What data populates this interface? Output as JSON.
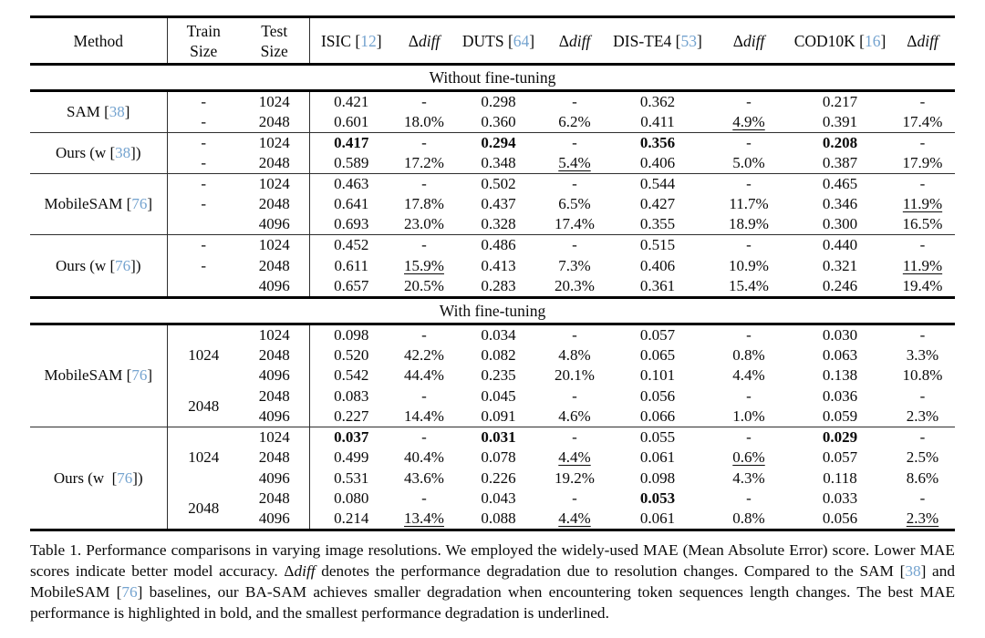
{
  "table": {
    "headers": {
      "method": "Method",
      "train": [
        "Train",
        "Size"
      ],
      "test": [
        "Test",
        "Size"
      ],
      "datasets": [
        {
          "name": "ISIC",
          "cite": "12"
        },
        {
          "name": "DUTS",
          "cite": "64"
        },
        {
          "name": "DIS-TE4",
          "cite": "53"
        },
        {
          "name": "COD10K",
          "cite": "16"
        }
      ],
      "diff": {
        "delta": "Δ",
        "word": "diff"
      }
    },
    "sections": [
      {
        "label": "Without fine-tuning",
        "groups": [
          {
            "method": {
              "pre": "SAM [",
              "cite": "38",
              "post": "]"
            },
            "rows": [
              {
                "train": "-",
                "test": "1024",
                "cells": [
                  "0.421",
                  "-",
                  "0.298",
                  "-",
                  "0.362",
                  "-",
                  "0.217",
                  "-"
                ]
              },
              {
                "train": "-",
                "test": "2048",
                "cells": [
                  "0.601",
                  "18.0%",
                  "0.360",
                  "6.2%",
                  "0.411",
                  {
                    "v": "4.9%",
                    "u": true
                  },
                  "0.391",
                  "17.4%"
                ]
              }
            ]
          },
          {
            "method": {
              "pre": "Ours (w [",
              "cite": "38",
              "post": "])"
            },
            "rows": [
              {
                "train": "-",
                "test": "1024",
                "cells": [
                  {
                    "v": "0.417",
                    "b": true
                  },
                  "-",
                  {
                    "v": "0.294",
                    "b": true
                  },
                  "-",
                  {
                    "v": "0.356",
                    "b": true
                  },
                  "-",
                  {
                    "v": "0.208",
                    "b": true
                  },
                  "-"
                ]
              },
              {
                "train": "-",
                "test": "2048",
                "cells": [
                  "0.589",
                  "17.2%",
                  "0.348",
                  {
                    "v": "5.4%",
                    "u": true
                  },
                  "0.406",
                  "5.0%",
                  "0.387",
                  "17.9%"
                ]
              }
            ]
          },
          {
            "method": {
              "pre": "MobileSAM [",
              "cite": "76",
              "post": "]"
            },
            "rows": [
              {
                "train": "-",
                "test": "1024",
                "cells": [
                  "0.463",
                  "-",
                  "0.502",
                  "-",
                  "0.544",
                  "-",
                  "0.465",
                  "-"
                ]
              },
              {
                "train": "-",
                "test": "2048",
                "cells": [
                  "0.641",
                  "17.8%",
                  "0.437",
                  "6.5%",
                  "0.427",
                  "11.7%",
                  "0.346",
                  {
                    "v": "11.9%",
                    "u": true
                  }
                ]
              },
              {
                "train": "",
                "test": "4096",
                "cells": [
                  "0.693",
                  "23.0%",
                  "0.328",
                  "17.4%",
                  "0.355",
                  "18.9%",
                  "0.300",
                  "16.5%"
                ]
              }
            ]
          },
          {
            "method": {
              "pre": "Ours (w [",
              "cite": "76",
              "post": "])"
            },
            "rows": [
              {
                "train": "-",
                "test": "1024",
                "cells": [
                  "0.452",
                  "-",
                  "0.486",
                  "-",
                  "0.515",
                  "-",
                  "0.440",
                  "-"
                ]
              },
              {
                "train": "-",
                "test": "2048",
                "cells": [
                  "0.611",
                  {
                    "v": "15.9%",
                    "u": true
                  },
                  "0.413",
                  "7.3%",
                  "0.406",
                  "10.9%",
                  "0.321",
                  {
                    "v": "11.9%",
                    "u": true
                  }
                ]
              },
              {
                "train": "",
                "test": "4096",
                "cells": [
                  "0.657",
                  "20.5%",
                  "0.283",
                  "20.3%",
                  "0.361",
                  "15.4%",
                  "0.246",
                  "19.4%"
                ]
              }
            ]
          }
        ]
      },
      {
        "label": "With fine-tuning",
        "groups": [
          {
            "method": {
              "pre": "MobileSAM [",
              "cite": "76",
              "post": "]"
            },
            "train_spans": [
              {
                "value": "1024",
                "span": 3
              },
              {
                "value": "2048",
                "span": 2
              }
            ],
            "rows": [
              {
                "test": "1024",
                "cells": [
                  "0.098",
                  "-",
                  "0.034",
                  "-",
                  "0.057",
                  "-",
                  "0.030",
                  "-"
                ]
              },
              {
                "test": "2048",
                "cells": [
                  "0.520",
                  "42.2%",
                  "0.082",
                  "4.8%",
                  "0.065",
                  "0.8%",
                  "0.063",
                  "3.3%"
                ]
              },
              {
                "test": "4096",
                "cells": [
                  "0.542",
                  "44.4%",
                  "0.235",
                  "20.1%",
                  "0.101",
                  "4.4%",
                  "0.138",
                  "10.8%"
                ]
              },
              {
                "test": "2048",
                "cells": [
                  "0.083",
                  "-",
                  "0.045",
                  "-",
                  "0.056",
                  "-",
                  "0.036",
                  "-"
                ]
              },
              {
                "test": "4096",
                "cells": [
                  "0.227",
                  "14.4%",
                  "0.091",
                  "4.6%",
                  "0.066",
                  "1.0%",
                  "0.059",
                  "2.3%"
                ]
              }
            ]
          },
          {
            "method": {
              "pre": "Ours (w  [",
              "cite": "76",
              "post": "])"
            },
            "train_spans": [
              {
                "value": "1024",
                "span": 3
              },
              {
                "value": "2048",
                "span": 2
              }
            ],
            "rows": [
              {
                "test": "1024",
                "cells": [
                  {
                    "v": "0.037",
                    "b": true
                  },
                  "-",
                  {
                    "v": "0.031",
                    "b": true
                  },
                  "-",
                  "0.055",
                  "-",
                  {
                    "v": "0.029",
                    "b": true
                  },
                  "-"
                ]
              },
              {
                "test": "2048",
                "cells": [
                  "0.499",
                  "40.4%",
                  "0.078",
                  {
                    "v": "4.4%",
                    "u": true
                  },
                  "0.061",
                  {
                    "v": "0.6%",
                    "u": true
                  },
                  "0.057",
                  "2.5%"
                ]
              },
              {
                "test": "4096",
                "cells": [
                  "0.531",
                  "43.6%",
                  "0.226",
                  "19.2%",
                  "0.098",
                  "4.3%",
                  "0.118",
                  "8.6%"
                ]
              },
              {
                "test": "2048",
                "cells": [
                  "0.080",
                  "-",
                  "0.043",
                  "-",
                  {
                    "v": "0.053",
                    "b": true
                  },
                  "-",
                  "0.033",
                  "-"
                ]
              },
              {
                "test": "4096",
                "cells": [
                  "0.214",
                  {
                    "v": "13.4%",
                    "u": true
                  },
                  "0.088",
                  {
                    "v": "4.4%",
                    "u": true
                  },
                  "0.061",
                  "0.8%",
                  "0.056",
                  {
                    "v": "2.3%",
                    "u": true
                  }
                ]
              }
            ]
          }
        ]
      }
    ]
  },
  "caption": {
    "segments": [
      {
        "s": "t",
        "t": "Table 1.  Performance comparisons in varying image resolutions.  We employed the widely-used MAE (Mean Absolute Error) score. Lower MAE scores indicate better model accuracy.  "
      },
      {
        "s": "t",
        "t": "Δ"
      },
      {
        "s": "i",
        "t": "diff"
      },
      {
        "s": "t",
        "t": " denotes the performance degradation due to resolution changes.  Compared to the SAM ["
      },
      {
        "s": "c",
        "t": "38"
      },
      {
        "s": "t",
        "t": "] and MobileSAM ["
      },
      {
        "s": "c",
        "t": "76"
      },
      {
        "s": "t",
        "t": "] baselines, our BA-SAM achieves smaller degradation when encountering token sequences length changes. The best MAE performance is highlighted in bold, and the smallest performance degradation is underlined."
      }
    ]
  },
  "colors": {
    "cite_blue": "#74a3cf",
    "rule_black": "#000000",
    "text": "#0a0a0a"
  }
}
